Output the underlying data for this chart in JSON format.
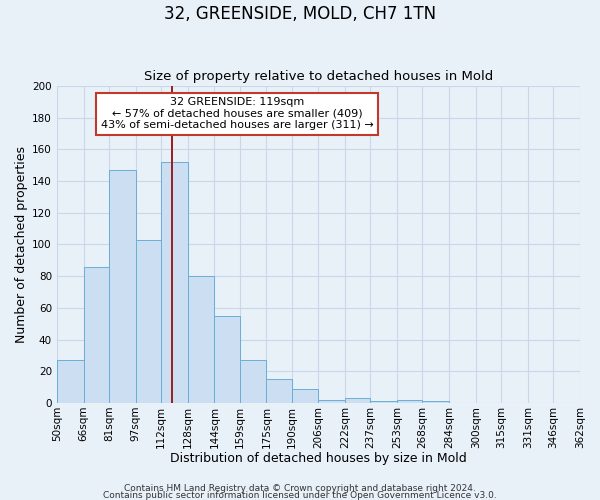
{
  "title": "32, GREENSIDE, MOLD, CH7 1TN",
  "subtitle": "Size of property relative to detached houses in Mold",
  "xlabel": "Distribution of detached houses by size in Mold",
  "ylabel": "Number of detached properties",
  "bar_values": [
    27,
    86,
    147,
    103,
    152,
    80,
    55,
    27,
    15,
    9,
    2,
    3,
    1,
    2,
    1,
    0,
    0,
    0,
    0,
    0
  ],
  "bin_edges": [
    50,
    66,
    81,
    97,
    112,
    128,
    144,
    159,
    175,
    190,
    206,
    222,
    237,
    253,
    268,
    284,
    300,
    315,
    331,
    346,
    362
  ],
  "bin_labels": [
    "50sqm",
    "66sqm",
    "81sqm",
    "97sqm",
    "112sqm",
    "128sqm",
    "144sqm",
    "159sqm",
    "175sqm",
    "190sqm",
    "206sqm",
    "222sqm",
    "237sqm",
    "253sqm",
    "268sqm",
    "284sqm",
    "300sqm",
    "315sqm",
    "331sqm",
    "346sqm",
    "362sqm"
  ],
  "bar_color": "#ccdff2",
  "bar_edge_color": "#6aaed6",
  "vline_x": 119,
  "vline_color": "#9b1c1c",
  "annotation_box_text": "32 GREENSIDE: 119sqm\n← 57% of detached houses are smaller (409)\n43% of semi-detached houses are larger (311) →",
  "annotation_box_color": "#ffffff",
  "annotation_box_edge_color": "#c0392b",
  "ylim": [
    0,
    200
  ],
  "yticks": [
    0,
    20,
    40,
    60,
    80,
    100,
    120,
    140,
    160,
    180,
    200
  ],
  "grid_color": "#c8d8e8",
  "bg_color": "#e8f0f8",
  "footer_line1": "Contains HM Land Registry data © Crown copyright and database right 2024.",
  "footer_line2": "Contains public sector information licensed under the Open Government Licence v3.0.",
  "title_fontsize": 12,
  "subtitle_fontsize": 9.5,
  "xlabel_fontsize": 9,
  "ylabel_fontsize": 9,
  "tick_fontsize": 7.5,
  "footer_fontsize": 6.5,
  "ann_fontsize": 8
}
